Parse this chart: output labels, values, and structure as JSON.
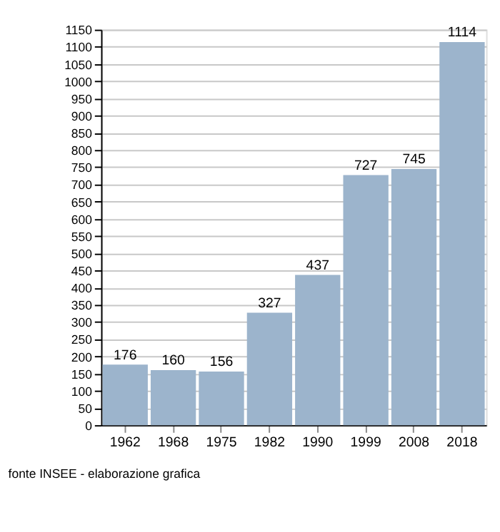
{
  "chart_data": {
    "type": "bar",
    "categories": [
      "1962",
      "1968",
      "1975",
      "1982",
      "1990",
      "1999",
      "2008",
      "2018"
    ],
    "values": [
      176,
      160,
      156,
      327,
      437,
      727,
      745,
      1114
    ],
    "color": "#9cb4cc",
    "ylim": [
      0,
      1150
    ],
    "yticks": [
      0,
      50,
      100,
      150,
      200,
      250,
      300,
      350,
      400,
      450,
      500,
      550,
      600,
      650,
      700,
      750,
      800,
      850,
      900,
      950,
      1000,
      1050,
      1100,
      1150
    ],
    "grid": "y",
    "data_labels": true,
    "annotations": [
      "fonte INSEE - elaborazione grafica"
    ]
  }
}
